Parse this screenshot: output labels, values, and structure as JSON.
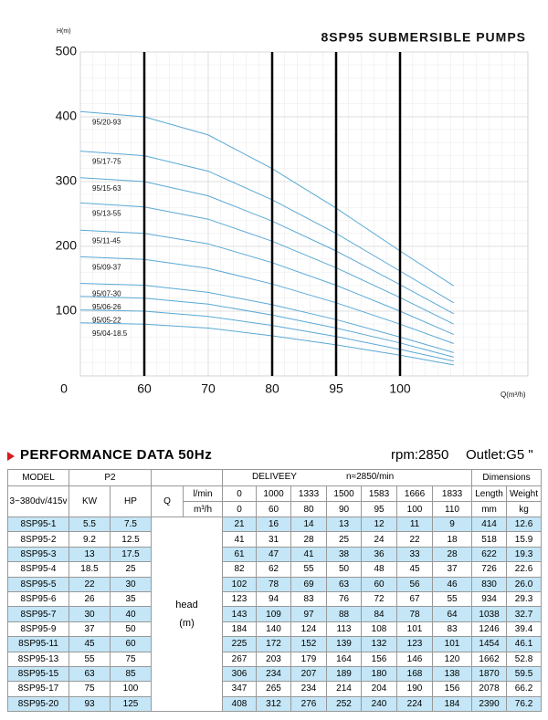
{
  "chart_data": {
    "type": "line",
    "title": "8SP95 SUBMERSIBLE PUMPS",
    "y_label": "H(m)",
    "x_label": "Q(m³/h)",
    "xlim": [
      0,
      7
    ],
    "ylim": [
      0,
      500
    ],
    "xticks": [
      0,
      {
        "value": 1,
        "label": "60"
      },
      {
        "value": 2,
        "label": "70"
      },
      {
        "value": 3,
        "label": "80"
      },
      {
        "value": 4,
        "label": "95"
      },
      {
        "value": 5,
        "label": "100"
      }
    ],
    "yticks": [
      100,
      200,
      300,
      400,
      500
    ],
    "marker_lines": [
      1,
      3,
      4,
      5
    ],
    "grid": true,
    "x": [
      0,
      1,
      2,
      3,
      4,
      5,
      5.84
    ],
    "series": [
      {
        "name": "95/20-93",
        "color": "#5aa9d6",
        "values": [
          408,
          400,
          372,
          320,
          259,
          193,
          139
        ]
      },
      {
        "name": "95/17-75",
        "color": "#5aa9d6",
        "values": [
          347,
          340,
          316,
          272,
          220,
          162,
          113
        ]
      },
      {
        "name": "95/15-63",
        "color": "#5aa9d6",
        "values": [
          306,
          300,
          278,
          239,
          193,
          141,
          96
        ]
      },
      {
        "name": "95/13-55",
        "color": "#5aa9d6",
        "values": [
          267,
          261,
          242,
          208,
          167,
          121,
          80
        ]
      },
      {
        "name": "95/11-45",
        "color": "#5aa9d6",
        "values": [
          225,
          220,
          204,
          175,
          140,
          100,
          64
        ]
      },
      {
        "name": "95/09-37",
        "color": "#5aa9d6",
        "values": [
          184,
          180,
          166,
          142,
          113,
          80,
          50
        ]
      },
      {
        "name": "95/07-30",
        "color": "#5aa9d6",
        "values": [
          143,
          140,
          129,
          110,
          87,
          60,
          36
        ]
      },
      {
        "name": "95/06-26",
        "color": "#5aa9d6",
        "values": [
          123,
          120,
          111,
          94,
          74,
          51,
          29
        ]
      },
      {
        "name": "95/05-22",
        "color": "#5aa9d6",
        "values": [
          102,
          100,
          92,
          78,
          61,
          41,
          23
        ]
      },
      {
        "name": "95/04-18.5",
        "color": "#5aa9d6",
        "values": [
          82,
          80,
          74,
          62,
          48,
          32,
          17
        ]
      }
    ]
  },
  "performance": {
    "title": "PERFORMANCE DATA 50Hz",
    "rpm": "rpm:2850",
    "outlet": "Outlet:G5 \"",
    "header": {
      "model": "MODEL",
      "p2": "P2",
      "delivery": "DELIVEEY",
      "speed": "n≈2850/min",
      "dimensions": "Dimensions",
      "voltage": "3~380dv/415v",
      "kw": "KW",
      "hp": "HP",
      "q": "Q",
      "lmin": "l/min",
      "m3h": "m³/h",
      "flow_lmin": [
        "0",
        "1000",
        "1333",
        "1500",
        "1583",
        "1666",
        "1833"
      ],
      "flow_m3h": [
        "0",
        "60",
        "80",
        "90",
        "95",
        "100",
        "110"
      ],
      "length": "Length",
      "weight": "Weight",
      "mm": "mm",
      "kg": "kg"
    },
    "head_label": "head",
    "head_unit": "(m)",
    "rows": [
      [
        "8SP95-1",
        "5.5",
        "7.5",
        "21",
        "16",
        "14",
        "13",
        "12",
        "11",
        "9",
        "414",
        "12.6"
      ],
      [
        "8SP95-2",
        "9.2",
        "12.5",
        "41",
        "31",
        "28",
        "25",
        "24",
        "22",
        "18",
        "518",
        "15.9"
      ],
      [
        "8SP95-3",
        "13",
        "17.5",
        "61",
        "47",
        "41",
        "38",
        "36",
        "33",
        "28",
        "622",
        "19.3"
      ],
      [
        "8SP95-4",
        "18.5",
        "25",
        "82",
        "62",
        "55",
        "50",
        "48",
        "45",
        "37",
        "726",
        "22.6"
      ],
      [
        "8SP95-5",
        "22",
        "30",
        "102",
        "78",
        "69",
        "63",
        "60",
        "56",
        "46",
        "830",
        "26.0"
      ],
      [
        "8SP95-6",
        "26",
        "35",
        "123",
        "94",
        "83",
        "76",
        "72",
        "67",
        "55",
        "934",
        "29.3"
      ],
      [
        "8SP95-7",
        "30",
        "40",
        "143",
        "109",
        "97",
        "88",
        "84",
        "78",
        "64",
        "1038",
        "32.7"
      ],
      [
        "8SP95-9",
        "37",
        "50",
        "184",
        "140",
        "124",
        "113",
        "108",
        "101",
        "83",
        "1246",
        "39.4"
      ],
      [
        "8SP95-11",
        "45",
        "60",
        "225",
        "172",
        "152",
        "139",
        "132",
        "123",
        "101",
        "1454",
        "46.1"
      ],
      [
        "8SP95-13",
        "55",
        "75",
        "267",
        "203",
        "179",
        "164",
        "156",
        "146",
        "120",
        "1662",
        "52.8"
      ],
      [
        "8SP95-15",
        "63",
        "85",
        "306",
        "234",
        "207",
        "189",
        "180",
        "168",
        "138",
        "1870",
        "59.5"
      ],
      [
        "8SP95-17",
        "75",
        "100",
        "347",
        "265",
        "234",
        "214",
        "204",
        "190",
        "156",
        "2078",
        "66.2"
      ],
      [
        "8SP95-20",
        "93",
        "125",
        "408",
        "312",
        "276",
        "252",
        "240",
        "224",
        "184",
        "2390",
        "76.2"
      ]
    ]
  }
}
